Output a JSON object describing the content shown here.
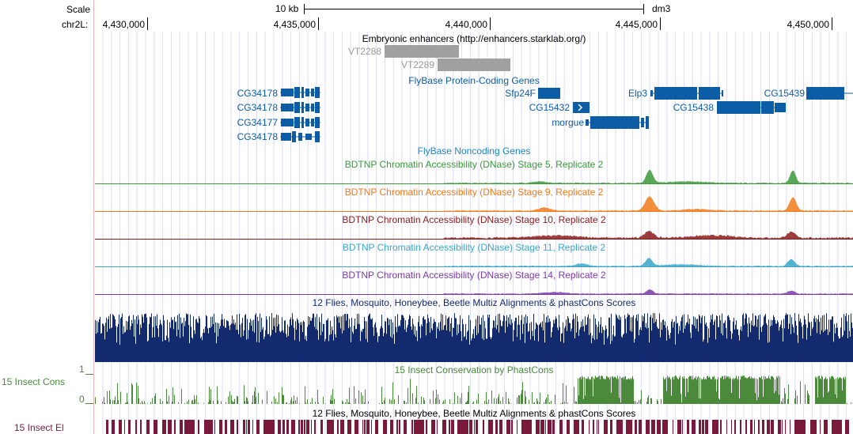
{
  "ruler": {
    "scale_label": "Scale",
    "scale_bar_label": "10 kb",
    "assembly": "dm3",
    "chrom_label": "chr2L:",
    "positions": [
      "4,430,000",
      "4,435,000",
      "4,440,000",
      "4,445,000",
      "4,450,000"
    ]
  },
  "tracks": {
    "enhancers": {
      "title": "Embryonic enhancers (http://enhancers.starklab.org/)",
      "items": [
        "VT2288",
        "VT2289"
      ],
      "color": "#a0a0a0"
    },
    "flybase_coding": {
      "title": "FlyBase Protein-Coding Genes",
      "genes": [
        "CG34178",
        "CG34178",
        "CG34177",
        "CG34178",
        "Sfp24F",
        "CG15432",
        "morgue",
        "Elp3",
        "CG15438",
        "CG15439"
      ],
      "color": "#0c5da5"
    },
    "flybase_noncoding": {
      "title": "FlyBase Noncoding Genes",
      "color": "#1a86c8"
    },
    "dnase": [
      {
        "title": "BDTNP Chromatin Accessibility (DNase) Stage 5, Replicate 2",
        "color": "#3a9a3a"
      },
      {
        "title": "BDTNP Chromatin Accessibility (DNase) Stage 9, Replicate 2",
        "color": "#f07a1a"
      },
      {
        "title": "BDTNP Chromatin Accessibility (DNase) Stage 10, Replicate 2",
        "color": "#8b1a1a"
      },
      {
        "title": "BDTNP Chromatin Accessibility (DNase) Stage 11, Replicate 2",
        "color": "#3aa6c8"
      },
      {
        "title": "BDTNP Chromatin Accessibility (DNase) Stage 14, Replicate 2",
        "color": "#7b3aa8"
      }
    ],
    "multiz": {
      "title": "12 Flies, Mosquito, Honeybee, Beetle Multiz Alignments & phastCons Scores",
      "color": "#142a6e"
    },
    "phastcons": {
      "label": "15 Insect Cons",
      "title": "15 Insect Conservation by PhastCons",
      "y_max": "1",
      "y_min": "0",
      "color": "#4a8a3a"
    },
    "elements": {
      "label": "15 Insect El",
      "title": "12 Flies, Mosquito, Honeybee, Beetle Multiz Alignments & phastCons Scores",
      "color": "#7a1a3a"
    }
  }
}
